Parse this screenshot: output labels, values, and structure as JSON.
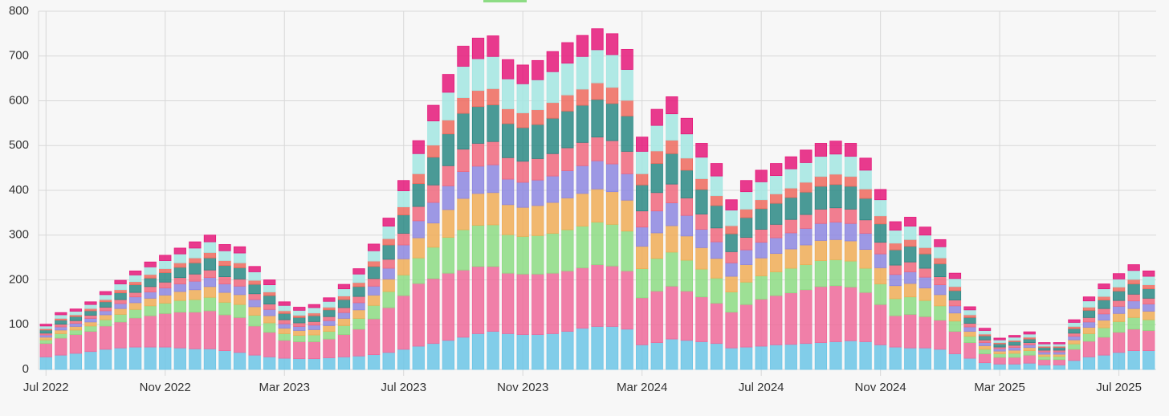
{
  "chart_data": {
    "type": "bar",
    "stacked": true,
    "grid": true,
    "categories": [
      "Jul 2022",
      null,
      null,
      null,
      null,
      null,
      null,
      null,
      "Nov 2022",
      null,
      null,
      null,
      null,
      null,
      null,
      null,
      "Mar 2023",
      null,
      null,
      null,
      null,
      null,
      null,
      null,
      "Jul 2023",
      null,
      null,
      null,
      null,
      null,
      null,
      null,
      "Nov 2023",
      null,
      null,
      null,
      null,
      null,
      null,
      null,
      "Mar 2024",
      null,
      null,
      null,
      null,
      null,
      null,
      null,
      "Jul 2024",
      null,
      null,
      null,
      null,
      null,
      null,
      null,
      "Nov 2024",
      null,
      null,
      null,
      null,
      null,
      null,
      null,
      "Mar 2025",
      null,
      null,
      null,
      null,
      null,
      null,
      null,
      "Jul 2025",
      null,
      null
    ],
    "ylim": [
      0,
      800
    ],
    "yticks": [
      0,
      100,
      200,
      300,
      400,
      500,
      600,
      700,
      800
    ],
    "series": [
      {
        "color": "#6cc5e6",
        "values": [
          28,
          32,
          36,
          40,
          45,
          48,
          50,
          50,
          50,
          48,
          46,
          46,
          42,
          38,
          32,
          28,
          25,
          24,
          24,
          26,
          28,
          30,
          33,
          38,
          45,
          52,
          58,
          65,
          72,
          80,
          85,
          80,
          78,
          78,
          80,
          85,
          92,
          96,
          96,
          90,
          55,
          60,
          68,
          65,
          62,
          58,
          48,
          50,
          52,
          55,
          56,
          58,
          60,
          62,
          64,
          62,
          55,
          50,
          48,
          48,
          45,
          35,
          25,
          15,
          12,
          12,
          14,
          10,
          10,
          20,
          28,
          32,
          38,
          42,
          42
        ]
      },
      {
        "color": "#ef6a9a",
        "values": [
          30,
          38,
          42,
          45,
          52,
          58,
          65,
          70,
          75,
          80,
          82,
          85,
          80,
          78,
          65,
          55,
          40,
          38,
          38,
          42,
          50,
          60,
          80,
          100,
          120,
          140,
          145,
          150,
          150,
          150,
          145,
          135,
          135,
          135,
          135,
          135,
          135,
          138,
          135,
          130,
          105,
          115,
          118,
          110,
          100,
          90,
          80,
          95,
          105,
          110,
          115,
          120,
          125,
          125,
          120,
          110,
          90,
          70,
          75,
          70,
          65,
          50,
          35,
          20,
          15,
          15,
          18,
          12,
          12,
          25,
          35,
          40,
          45,
          48,
          45
        ]
      },
      {
        "color": "#8ddc84",
        "values": [
          8,
          10,
          10,
          12,
          14,
          17,
          19,
          22,
          23,
          26,
          28,
          30,
          28,
          29,
          24,
          21,
          15,
          14,
          15,
          17,
          20,
          24,
          30,
          36,
          46,
          57,
          70,
          80,
          90,
          92,
          93,
          86,
          84,
          86,
          89,
          92,
          93,
          95,
          93,
          89,
          65,
          73,
          76,
          69,
          62,
          56,
          45,
          50,
          52,
          53,
          55,
          56,
          58,
          58,
          58,
          54,
          46,
          38,
          39,
          36,
          32,
          23,
          14,
          10,
          8,
          9,
          10,
          7,
          7,
          12,
          17,
          21,
          24,
          26,
          24
        ]
      },
      {
        "color": "#f0ad57",
        "values": [
          6,
          8,
          8,
          9,
          11,
          13,
          15,
          17,
          18,
          20,
          22,
          24,
          22,
          22,
          19,
          16,
          12,
          11,
          12,
          13,
          16,
          19,
          23,
          28,
          36,
          45,
          54,
          62,
          70,
          71,
          72,
          67,
          65,
          67,
          69,
          71,
          73,
          74,
          73,
          69,
          50,
          57,
          59,
          54,
          48,
          44,
          35,
          39,
          40,
          41,
          43,
          44,
          45,
          45,
          45,
          42,
          36,
          29,
          30,
          28,
          25,
          18,
          11,
          8,
          6,
          7,
          7,
          5,
          5,
          9,
          14,
          17,
          18,
          20,
          19
        ]
      },
      {
        "color": "#8d87e0",
        "values": [
          5,
          7,
          7,
          8,
          9,
          11,
          13,
          14,
          16,
          17,
          19,
          20,
          19,
          19,
          16,
          14,
          10,
          9,
          10,
          11,
          13,
          16,
          20,
          24,
          31,
          38,
          46,
          53,
          60,
          61,
          62,
          57,
          56,
          57,
          59,
          61,
          62,
          63,
          62,
          59,
          43,
          49,
          51,
          46,
          41,
          37,
          30,
          33,
          35,
          35,
          36,
          37,
          38,
          39,
          39,
          36,
          31,
          25,
          26,
          24,
          22,
          16,
          10,
          7,
          5,
          6,
          6,
          5,
          5,
          8,
          12,
          14,
          16,
          17,
          16
        ]
      },
      {
        "color": "#f0687e",
        "values": [
          4,
          6,
          6,
          7,
          8,
          9,
          10,
          12,
          13,
          14,
          16,
          17,
          16,
          16,
          13,
          12,
          9,
          8,
          8,
          9,
          11,
          14,
          17,
          20,
          26,
          32,
          39,
          45,
          50,
          51,
          52,
          48,
          47,
          48,
          50,
          51,
          52,
          53,
          52,
          50,
          36,
          41,
          42,
          39,
          34,
          31,
          25,
          28,
          29,
          30,
          30,
          31,
          32,
          32,
          32,
          30,
          26,
          21,
          22,
          20,
          18,
          13,
          8,
          6,
          4,
          5,
          5,
          4,
          4,
          7,
          10,
          12,
          13,
          15,
          13
        ]
      },
      {
        "color": "#2c8985",
        "values": [
          7,
          9,
          9,
          10,
          12,
          15,
          17,
          19,
          21,
          23,
          25,
          27,
          25,
          25,
          21,
          19,
          14,
          12,
          13,
          15,
          18,
          22,
          27,
          32,
          41,
          51,
          62,
          71,
          80,
          82,
          82,
          76,
          75,
          76,
          79,
          82,
          83,
          84,
          83,
          79,
          58,
          65,
          68,
          62,
          55,
          50,
          40,
          44,
          46,
          47,
          49,
          50,
          51,
          52,
          51,
          48,
          41,
          34,
          35,
          32,
          29,
          21,
          13,
          9,
          7,
          8,
          8,
          6,
          6,
          10,
          16,
          19,
          21,
          23,
          21
        ]
      },
      {
        "color": "#ee6a5e",
        "values": [
          3,
          4,
          4,
          5,
          5,
          7,
          7,
          8,
          9,
          10,
          11,
          12,
          11,
          11,
          9,
          8,
          6,
          5,
          6,
          6,
          8,
          9,
          12,
          14,
          18,
          22,
          27,
          31,
          35,
          36,
          36,
          33,
          33,
          33,
          35,
          36,
          36,
          37,
          36,
          35,
          25,
          28,
          30,
          27,
          24,
          22,
          18,
          19,
          20,
          21,
          21,
          22,
          22,
          23,
          22,
          21,
          18,
          15,
          15,
          14,
          13,
          9,
          6,
          4,
          3,
          3,
          4,
          3,
          3,
          5,
          7,
          8,
          9,
          10,
          9
        ]
      },
      {
        "color": "#a3e6e2",
        "values": [
          6,
          8,
          8,
          9,
          11,
          13,
          15,
          17,
          18,
          20,
          22,
          24,
          22,
          22,
          19,
          16,
          12,
          11,
          12,
          13,
          16,
          19,
          23,
          28,
          36,
          45,
          54,
          62,
          70,
          71,
          72,
          67,
          65,
          67,
          69,
          71,
          73,
          74,
          73,
          69,
          50,
          57,
          59,
          54,
          48,
          44,
          35,
          39,
          40,
          41,
          43,
          44,
          45,
          45,
          45,
          42,
          36,
          29,
          30,
          28,
          25,
          18,
          11,
          8,
          6,
          7,
          7,
          5,
          5,
          9,
          14,
          17,
          18,
          20,
          19
        ]
      },
      {
        "color": "#e5197a",
        "values": [
          4,
          5,
          5,
          6,
          7,
          8,
          9,
          11,
          12,
          13,
          14,
          15,
          14,
          14,
          12,
          11,
          8,
          7,
          7,
          8,
          10,
          12,
          15,
          18,
          23,
          29,
          35,
          40,
          45,
          46,
          46,
          43,
          42,
          43,
          45,
          46,
          47,
          47,
          47,
          45,
          32,
          36,
          38,
          35,
          31,
          28,
          23,
          25,
          26,
          27,
          27,
          28,
          29,
          29,
          29,
          27,
          23,
          19,
          20,
          18,
          16,
          12,
          7,
          5,
          4,
          4,
          5,
          3,
          3,
          6,
          9,
          11,
          12,
          13,
          12
        ]
      }
    ]
  }
}
